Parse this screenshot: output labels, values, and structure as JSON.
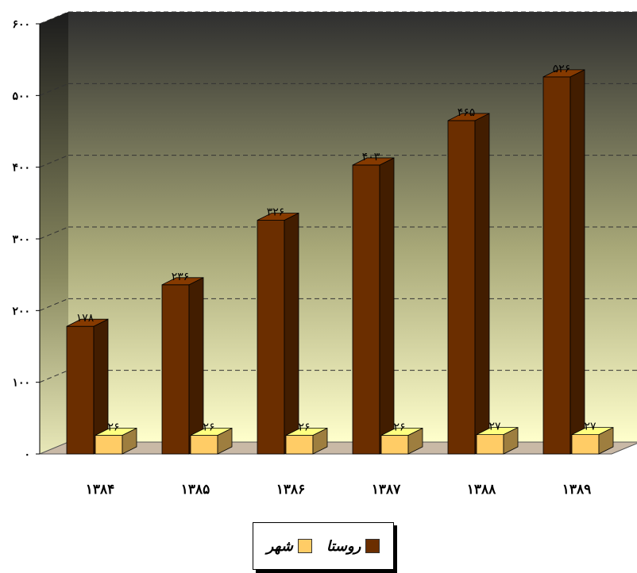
{
  "chart_data": {
    "type": "bar",
    "categories": [
      "۱۳۸۴",
      "۱۳۸۵",
      "۱۳۸۶",
      "۱۳۸۷",
      "۱۳۸۸",
      "۱۳۸۹"
    ],
    "series": [
      {
        "name": "روستا",
        "values": [
          178,
          236,
          326,
          403,
          465,
          526
        ],
        "labels": [
          "۱۷۸",
          "۲۳۶",
          "۳۲۶",
          "۴۰۳",
          "۴۶۵",
          "۵۲۶"
        ],
        "color": "#6b2e00"
      },
      {
        "name": "شهر",
        "values": [
          26,
          26,
          26,
          26,
          27,
          27
        ],
        "labels": [
          "۲۶",
          "۲۶",
          "۲۶",
          "۲۶",
          "۲۷",
          "۲۷"
        ],
        "color": "#ffcc66"
      }
    ],
    "yticks": [
      0,
      100,
      200,
      300,
      400,
      500,
      600
    ],
    "ytick_labels": [
      "۰",
      "۱۰۰",
      "۲۰۰",
      "۳۰۰",
      "۴۰۰",
      "۵۰۰",
      "۶۰۰"
    ],
    "ylim": [
      0,
      600
    ],
    "title": "",
    "xlabel": "",
    "ylabel": "",
    "grid": true,
    "legend_position": "bottom-center"
  },
  "legend": {
    "entries": [
      {
        "label": "روستا",
        "color": "#6b2e00"
      },
      {
        "label": "شهر",
        "color": "#ffcc66"
      }
    ]
  }
}
